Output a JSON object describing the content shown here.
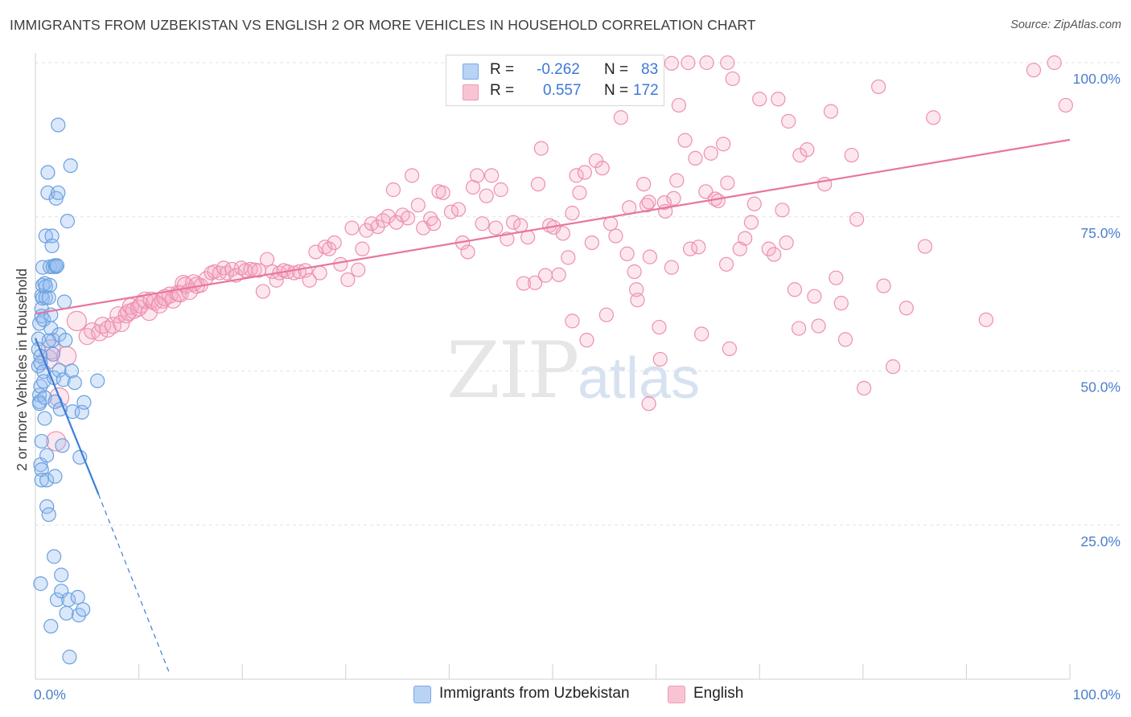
{
  "title": "IMMIGRANTS FROM UZBEKISTAN VS ENGLISH 2 OR MORE VEHICLES IN HOUSEHOLD CORRELATION CHART",
  "source": "Source: ZipAtlas.com",
  "watermark": {
    "zip": "ZIP",
    "atlas": "atlas"
  },
  "legend": {
    "r_label": "R =",
    "n_label": "N =",
    "rows": [
      {
        "r": "-0.262",
        "n": "83",
        "swatch_fill": "#b9d3f5",
        "swatch_stroke": "#7aa8e6"
      },
      {
        "r": "0.557",
        "n": "172",
        "swatch_fill": "#f8c4d4",
        "swatch_stroke": "#ee9ab5"
      }
    ]
  },
  "bottom_legend": [
    {
      "label": "Immigrants from Uzbekistan",
      "fill": "#b9d3f5",
      "stroke": "#7aa8e6"
    },
    {
      "label": "English",
      "fill": "#f8c4d4",
      "stroke": "#ee9ab5"
    }
  ],
  "chart_data": {
    "type": "scatter",
    "title": "IMMIGRANTS FROM UZBEKISTAN VS ENGLISH 2 OR MORE VEHICLES IN HOUSEHOLD CORRELATION CHART",
    "xlabel": "",
    "ylabel": "2 or more Vehicles in Household",
    "xlim": [
      0,
      100
    ],
    "ylim": [
      0,
      100
    ],
    "x_tick_labels": [
      {
        "value": 0,
        "label": "0.0%"
      },
      {
        "value": 100,
        "label": "100.0%"
      }
    ],
    "y_tick_labels": [
      {
        "value": 25,
        "label": "25.0%"
      },
      {
        "value": 50,
        "label": "50.0%"
      },
      {
        "value": 75,
        "label": "75.0%"
      },
      {
        "value": 100,
        "label": "100.0%"
      }
    ],
    "grid": true,
    "colors": {
      "blue": "#6aa0e0",
      "blue_line": "#3b7dd8",
      "pink": "#ee8fae",
      "pink_line": "#e8769d",
      "tick_label": "#4a7fcf"
    },
    "series": [
      {
        "name": "Immigrants from Uzbekistan",
        "R": -0.262,
        "N": 83,
        "trend": {
          "x0": 0,
          "y0": 55.3,
          "x1": 6.1,
          "y1": 30.0,
          "dash_to_x": 13.0,
          "dash_to_y": 0.8
        },
        "points": [
          [
            0.3,
            55.2
          ],
          [
            0.3,
            53.5
          ],
          [
            0.3,
            50.8
          ],
          [
            0.4,
            57.7
          ],
          [
            0.4,
            46.1
          ],
          [
            0.4,
            45.0
          ],
          [
            0.4,
            44.7
          ],
          [
            0.5,
            52.4
          ],
          [
            0.5,
            51.3
          ],
          [
            0.5,
            47.5
          ],
          [
            0.5,
            15.5
          ],
          [
            0.5,
            34.8
          ],
          [
            0.6,
            38.6
          ],
          [
            0.6,
            34.0
          ],
          [
            0.6,
            32.3
          ],
          [
            0.6,
            62.2
          ],
          [
            0.6,
            60.1
          ],
          [
            0.6,
            58.9
          ],
          [
            0.7,
            61.8
          ],
          [
            0.7,
            66.8
          ],
          [
            0.7,
            63.9
          ],
          [
            0.8,
            58.3
          ],
          [
            0.8,
            49.9
          ],
          [
            0.8,
            48.3
          ],
          [
            0.9,
            64.2
          ],
          [
            0.9,
            42.3
          ],
          [
            0.9,
            45.7
          ],
          [
            1.0,
            61.9
          ],
          [
            1.0,
            63.7
          ],
          [
            1.0,
            71.9
          ],
          [
            1.1,
            32.3
          ],
          [
            1.1,
            36.3
          ],
          [
            1.1,
            28.0
          ],
          [
            1.2,
            82.2
          ],
          [
            1.2,
            78.9
          ],
          [
            1.3,
            61.9
          ],
          [
            1.3,
            26.7
          ],
          [
            1.4,
            63.9
          ],
          [
            1.4,
            66.9
          ],
          [
            1.5,
            8.6
          ],
          [
            1.5,
            59.1
          ],
          [
            1.5,
            56.9
          ],
          [
            1.6,
            71.9
          ],
          [
            1.6,
            70.3
          ],
          [
            1.7,
            66.9
          ],
          [
            1.7,
            55.0
          ],
          [
            1.7,
            52.7
          ],
          [
            1.8,
            48.9
          ],
          [
            1.8,
            19.9
          ],
          [
            1.9,
            67.1
          ],
          [
            1.9,
            45.0
          ],
          [
            1.9,
            32.9
          ],
          [
            2.0,
            78.0
          ],
          [
            2.0,
            66.9
          ],
          [
            2.1,
            67.1
          ],
          [
            2.1,
            12.9
          ],
          [
            2.2,
            89.9
          ],
          [
            2.2,
            78.9
          ],
          [
            2.3,
            55.9
          ],
          [
            2.3,
            50.1
          ],
          [
            2.4,
            43.8
          ],
          [
            2.5,
            16.9
          ],
          [
            2.5,
            14.3
          ],
          [
            2.6,
            37.9
          ],
          [
            2.7,
            48.6
          ],
          [
            2.8,
            61.2
          ],
          [
            2.9,
            55.0
          ],
          [
            3.0,
            10.7
          ],
          [
            3.1,
            74.3
          ],
          [
            3.2,
            12.9
          ],
          [
            3.3,
            3.6
          ],
          [
            3.4,
            83.3
          ],
          [
            3.5,
            50.0
          ],
          [
            3.6,
            43.4
          ],
          [
            3.8,
            48.1
          ],
          [
            4.1,
            13.3
          ],
          [
            4.2,
            10.4
          ],
          [
            4.3,
            36.0
          ],
          [
            4.5,
            43.3
          ],
          [
            4.6,
            11.3
          ],
          [
            4.7,
            44.9
          ],
          [
            6.0,
            48.4
          ],
          [
            1.3,
            54.9
          ]
        ]
      },
      {
        "name": "English",
        "R": 0.557,
        "N": 172,
        "trend": {
          "x0": 0,
          "y0": 59.3,
          "x1": 100,
          "y1": 87.5
        },
        "points": [
          [
            1.2,
            51.9
          ],
          [
            1.5,
            53.5
          ],
          [
            2.0,
            38.6
          ],
          [
            2.3,
            45.7
          ],
          [
            3.0,
            52.4
          ],
          [
            4.0,
            58.1
          ],
          [
            5.0,
            55.6
          ],
          [
            5.5,
            56.5
          ],
          [
            6.2,
            56.2
          ],
          [
            6.5,
            57.4
          ],
          [
            7.0,
            56.8
          ],
          [
            7.5,
            57.4
          ],
          [
            8.0,
            59.1
          ],
          [
            8.3,
            57.7
          ],
          [
            8.8,
            59.1
          ],
          [
            9.0,
            59.5
          ],
          [
            9.2,
            60.5
          ],
          [
            9.5,
            59.8
          ],
          [
            10.0,
            60.2
          ],
          [
            10.2,
            60.7
          ],
          [
            10.6,
            61.5
          ],
          [
            11.0,
            59.5
          ],
          [
            11.2,
            61.5
          ],
          [
            11.5,
            61.2
          ],
          [
            12.0,
            60.7
          ],
          [
            12.3,
            61.5
          ],
          [
            12.5,
            61.9
          ],
          [
            13.0,
            62.3
          ],
          [
            13.3,
            61.5
          ],
          [
            13.8,
            62.6
          ],
          [
            14.0,
            62.5
          ],
          [
            14.3,
            64.2
          ],
          [
            14.5,
            63.9
          ],
          [
            14.9,
            62.9
          ],
          [
            15.3,
            64.3
          ],
          [
            15.6,
            63.9
          ],
          [
            16.0,
            63.9
          ],
          [
            16.5,
            65.0
          ],
          [
            17.0,
            65.9
          ],
          [
            17.3,
            66.1
          ],
          [
            17.8,
            65.9
          ],
          [
            18.2,
            66.7
          ],
          [
            18.5,
            65.9
          ],
          [
            19.0,
            66.5
          ],
          [
            19.4,
            65.5
          ],
          [
            19.9,
            66.7
          ],
          [
            20.3,
            66.3
          ],
          [
            20.8,
            66.5
          ],
          [
            21.2,
            66.4
          ],
          [
            21.6,
            66.3
          ],
          [
            22.0,
            62.9
          ],
          [
            22.4,
            68.1
          ],
          [
            22.9,
            66.1
          ],
          [
            23.3,
            64.7
          ],
          [
            23.6,
            65.9
          ],
          [
            24.0,
            66.3
          ],
          [
            24.4,
            66.1
          ],
          [
            25.0,
            65.9
          ],
          [
            25.5,
            66.1
          ],
          [
            26.1,
            66.3
          ],
          [
            26.5,
            64.7
          ],
          [
            27.1,
            69.3
          ],
          [
            27.5,
            65.9
          ],
          [
            28.0,
            70.1
          ],
          [
            28.4,
            69.8
          ],
          [
            28.9,
            70.8
          ],
          [
            29.5,
            67.3
          ],
          [
            30.2,
            64.8
          ],
          [
            30.6,
            73.2
          ],
          [
            31.2,
            66.4
          ],
          [
            31.6,
            69.8
          ],
          [
            32.0,
            72.8
          ],
          [
            32.5,
            73.9
          ],
          [
            33.1,
            73.4
          ],
          [
            33.6,
            74.4
          ],
          [
            34.1,
            75.1
          ],
          [
            34.6,
            79.4
          ],
          [
            34.9,
            74.1
          ],
          [
            35.5,
            75.3
          ],
          [
            36.0,
            74.8
          ],
          [
            36.4,
            81.7
          ],
          [
            37.0,
            76.9
          ],
          [
            37.5,
            73.2
          ],
          [
            38.2,
            74.7
          ],
          [
            38.5,
            73.9
          ],
          [
            39.0,
            79.1
          ],
          [
            39.4,
            78.9
          ],
          [
            40.2,
            75.8
          ],
          [
            40.9,
            76.2
          ],
          [
            41.3,
            70.8
          ],
          [
            41.8,
            69.3
          ],
          [
            42.3,
            79.8
          ],
          [
            42.7,
            81.7
          ],
          [
            43.2,
            73.9
          ],
          [
            43.6,
            78.4
          ],
          [
            44.1,
            81.7
          ],
          [
            44.5,
            73.2
          ],
          [
            45.0,
            79.4
          ],
          [
            45.6,
            71.4
          ],
          [
            46.2,
            74.1
          ],
          [
            46.9,
            73.6
          ],
          [
            47.2,
            64.2
          ],
          [
            47.6,
            71.7
          ],
          [
            48.3,
            64.3
          ],
          [
            48.6,
            80.3
          ],
          [
            48.9,
            86.1
          ],
          [
            49.3,
            65.5
          ],
          [
            49.7,
            73.6
          ],
          [
            50.1,
            73.3
          ],
          [
            50.6,
            65.6
          ],
          [
            51.0,
            72.3
          ],
          [
            51.5,
            68.4
          ],
          [
            51.9,
            75.6
          ],
          [
            51.9,
            58.1
          ],
          [
            52.3,
            81.7
          ],
          [
            52.6,
            78.9
          ],
          [
            53.1,
            82.2
          ],
          [
            53.3,
            55.0
          ],
          [
            53.8,
            70.8
          ],
          [
            54.2,
            84.1
          ],
          [
            54.8,
            82.9
          ],
          [
            55.2,
            59.1
          ],
          [
            55.6,
            73.9
          ],
          [
            56.1,
            71.9
          ],
          [
            56.6,
            91.1
          ],
          [
            57.4,
            76.5
          ],
          [
            57.2,
            69.0
          ],
          [
            57.9,
            66.1
          ],
          [
            58.1,
            63.2
          ],
          [
            58.2,
            61.5
          ],
          [
            58.8,
            80.3
          ],
          [
            59.1,
            76.9
          ],
          [
            59.3,
            77.4
          ],
          [
            59.4,
            68.5
          ],
          [
            59.3,
            44.7
          ],
          [
            60.3,
            57.1
          ],
          [
            60.8,
            77.3
          ],
          [
            60.4,
            51.9
          ],
          [
            60.9,
            75.9
          ],
          [
            61.5,
            66.8
          ],
          [
            61.7,
            78.0
          ],
          [
            62.0,
            80.9
          ],
          [
            62.2,
            93.1
          ],
          [
            62.8,
            87.4
          ],
          [
            63.3,
            69.8
          ],
          [
            63.8,
            84.5
          ],
          [
            64.1,
            70.1
          ],
          [
            64.8,
            79.1
          ],
          [
            64.4,
            56.0
          ],
          [
            65.3,
            85.3
          ],
          [
            65.7,
            77.9
          ],
          [
            66.0,
            77.6
          ],
          [
            66.5,
            86.8
          ],
          [
            66.9,
            80.5
          ],
          [
            66.8,
            67.3
          ],
          [
            67.1,
            53.6
          ],
          [
            67.4,
            97.4
          ],
          [
            68.1,
            69.8
          ],
          [
            68.6,
            71.5
          ],
          [
            69.2,
            74.1
          ],
          [
            69.5,
            77.1
          ],
          [
            70.0,
            94.1
          ],
          [
            70.9,
            69.8
          ],
          [
            71.4,
            68.9
          ],
          [
            71.8,
            94.1
          ],
          [
            72.2,
            76.1
          ],
          [
            72.6,
            70.8
          ],
          [
            72.8,
            90.5
          ],
          [
            73.4,
            63.2
          ],
          [
            73.8,
            56.9
          ],
          [
            73.9,
            85.0
          ],
          [
            74.6,
            85.9
          ],
          [
            75.3,
            62.1
          ],
          [
            75.7,
            57.3
          ],
          [
            76.3,
            80.3
          ],
          [
            76.9,
            92.1
          ],
          [
            77.4,
            65.1
          ],
          [
            77.9,
            61.0
          ],
          [
            78.3,
            55.1
          ],
          [
            78.9,
            85.0
          ],
          [
            79.4,
            74.6
          ],
          [
            80.1,
            47.2
          ],
          [
            81.5,
            96.1
          ],
          [
            82.0,
            63.8
          ],
          [
            82.9,
            50.7
          ],
          [
            84.2,
            60.2
          ],
          [
            86.0,
            70.2
          ],
          [
            86.8,
            91.1
          ],
          [
            91.9,
            58.3
          ],
          [
            96.5,
            98.8
          ],
          [
            98.5,
            100.0
          ],
          [
            99.6,
            93.1
          ],
          [
            55.5,
            100.0
          ],
          [
            57.1,
            100.0
          ],
          [
            58.3,
            100.0
          ],
          [
            60.1,
            100.0
          ],
          [
            61.5,
            99.9
          ],
          [
            63.1,
            100.0
          ],
          [
            64.9,
            100.0
          ],
          [
            66.9,
            100.0
          ]
        ]
      }
    ]
  }
}
